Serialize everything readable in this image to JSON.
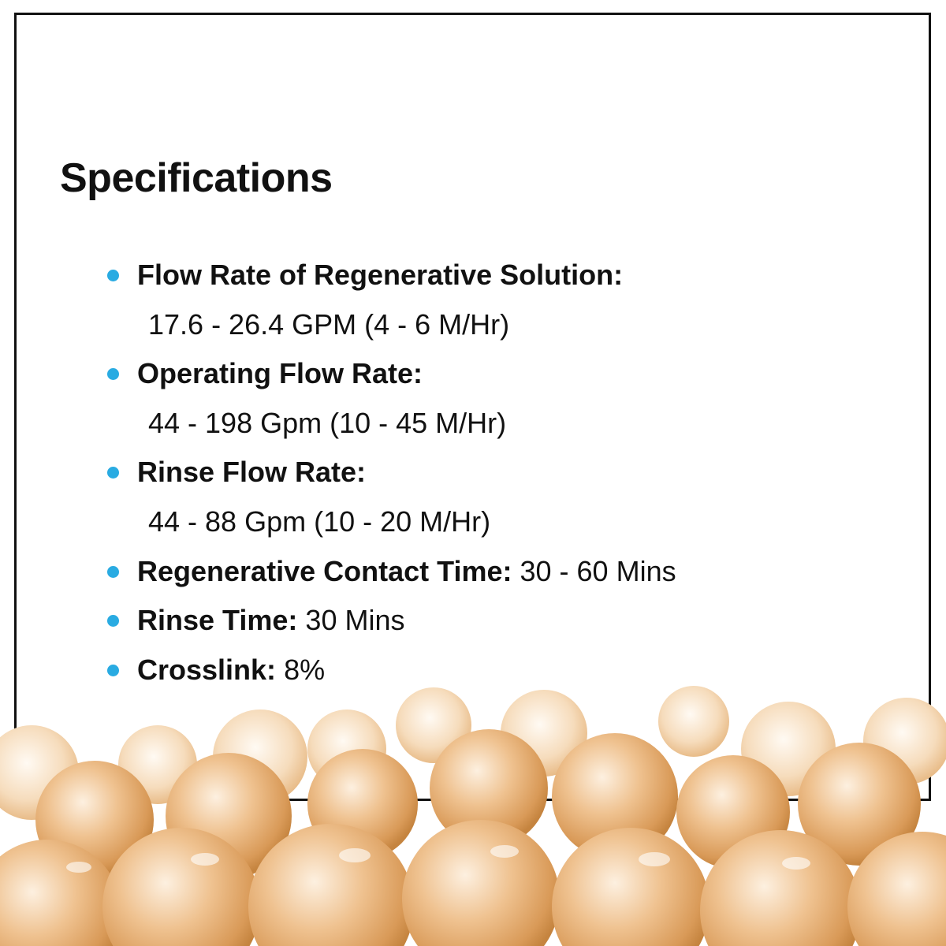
{
  "title": "Specifications",
  "items": [
    {
      "label": "Flow Rate of Regenerative Solution:",
      "value": "17.6 - 26.4 GPM (4 - 6 M/Hr)"
    },
    {
      "label": "Operating Flow Rate:",
      "value": "44 - 198 Gpm (10 - 45 M/Hr)"
    },
    {
      "label": "Rinse Flow Rate:",
      "value": "44 - 88 Gpm (10 - 20 M/Hr)"
    },
    {
      "label": "Regenerative Contact Time:",
      "value": "30 - 60 Mins"
    },
    {
      "label": "Rinse Time:",
      "value": "30 Mins"
    },
    {
      "label": "Crosslink:",
      "value": "8%"
    }
  ]
}
